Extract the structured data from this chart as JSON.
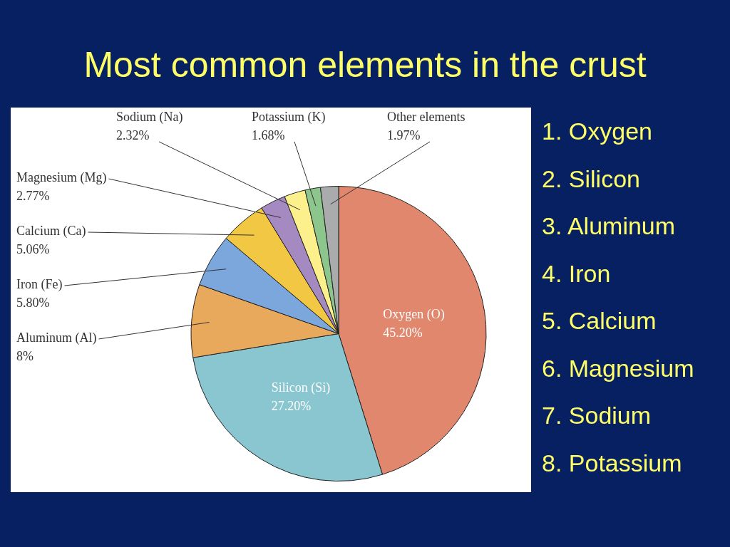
{
  "chart_data": {
    "type": "pie",
    "title": "Most common elements in the crust",
    "categories": [
      "Oxygen (O)",
      "Silicon (Si)",
      "Aluminum (Al)",
      "Iron (Fe)",
      "Calcium (Ca)",
      "Magnesium (Mg)",
      "Sodium (Na)",
      "Potassium (K)",
      "Other elements"
    ],
    "values": [
      45.2,
      27.2,
      8,
      5.8,
      5.06,
      2.77,
      2.32,
      1.68,
      1.97
    ],
    "value_labels": [
      "45.20%",
      "27.20%",
      "8%",
      "5.80%",
      "5.06%",
      "2.77%",
      "2.32%",
      "1.68%",
      "1.97%"
    ],
    "colors": [
      "#e0876e",
      "#8ac6d0",
      "#e8a95c",
      "#7ba7dc",
      "#f2c744",
      "#a48ac0",
      "#fbf08c",
      "#8cc68c",
      "#a9abad"
    ],
    "legend": false,
    "annotations": [
      "1. Oxygen",
      "2. Silicon",
      "3. Aluminum",
      "4. Iron",
      "5. Calcium",
      "6. Magnesium",
      "7. Sodium",
      "8. Potassium"
    ]
  }
}
